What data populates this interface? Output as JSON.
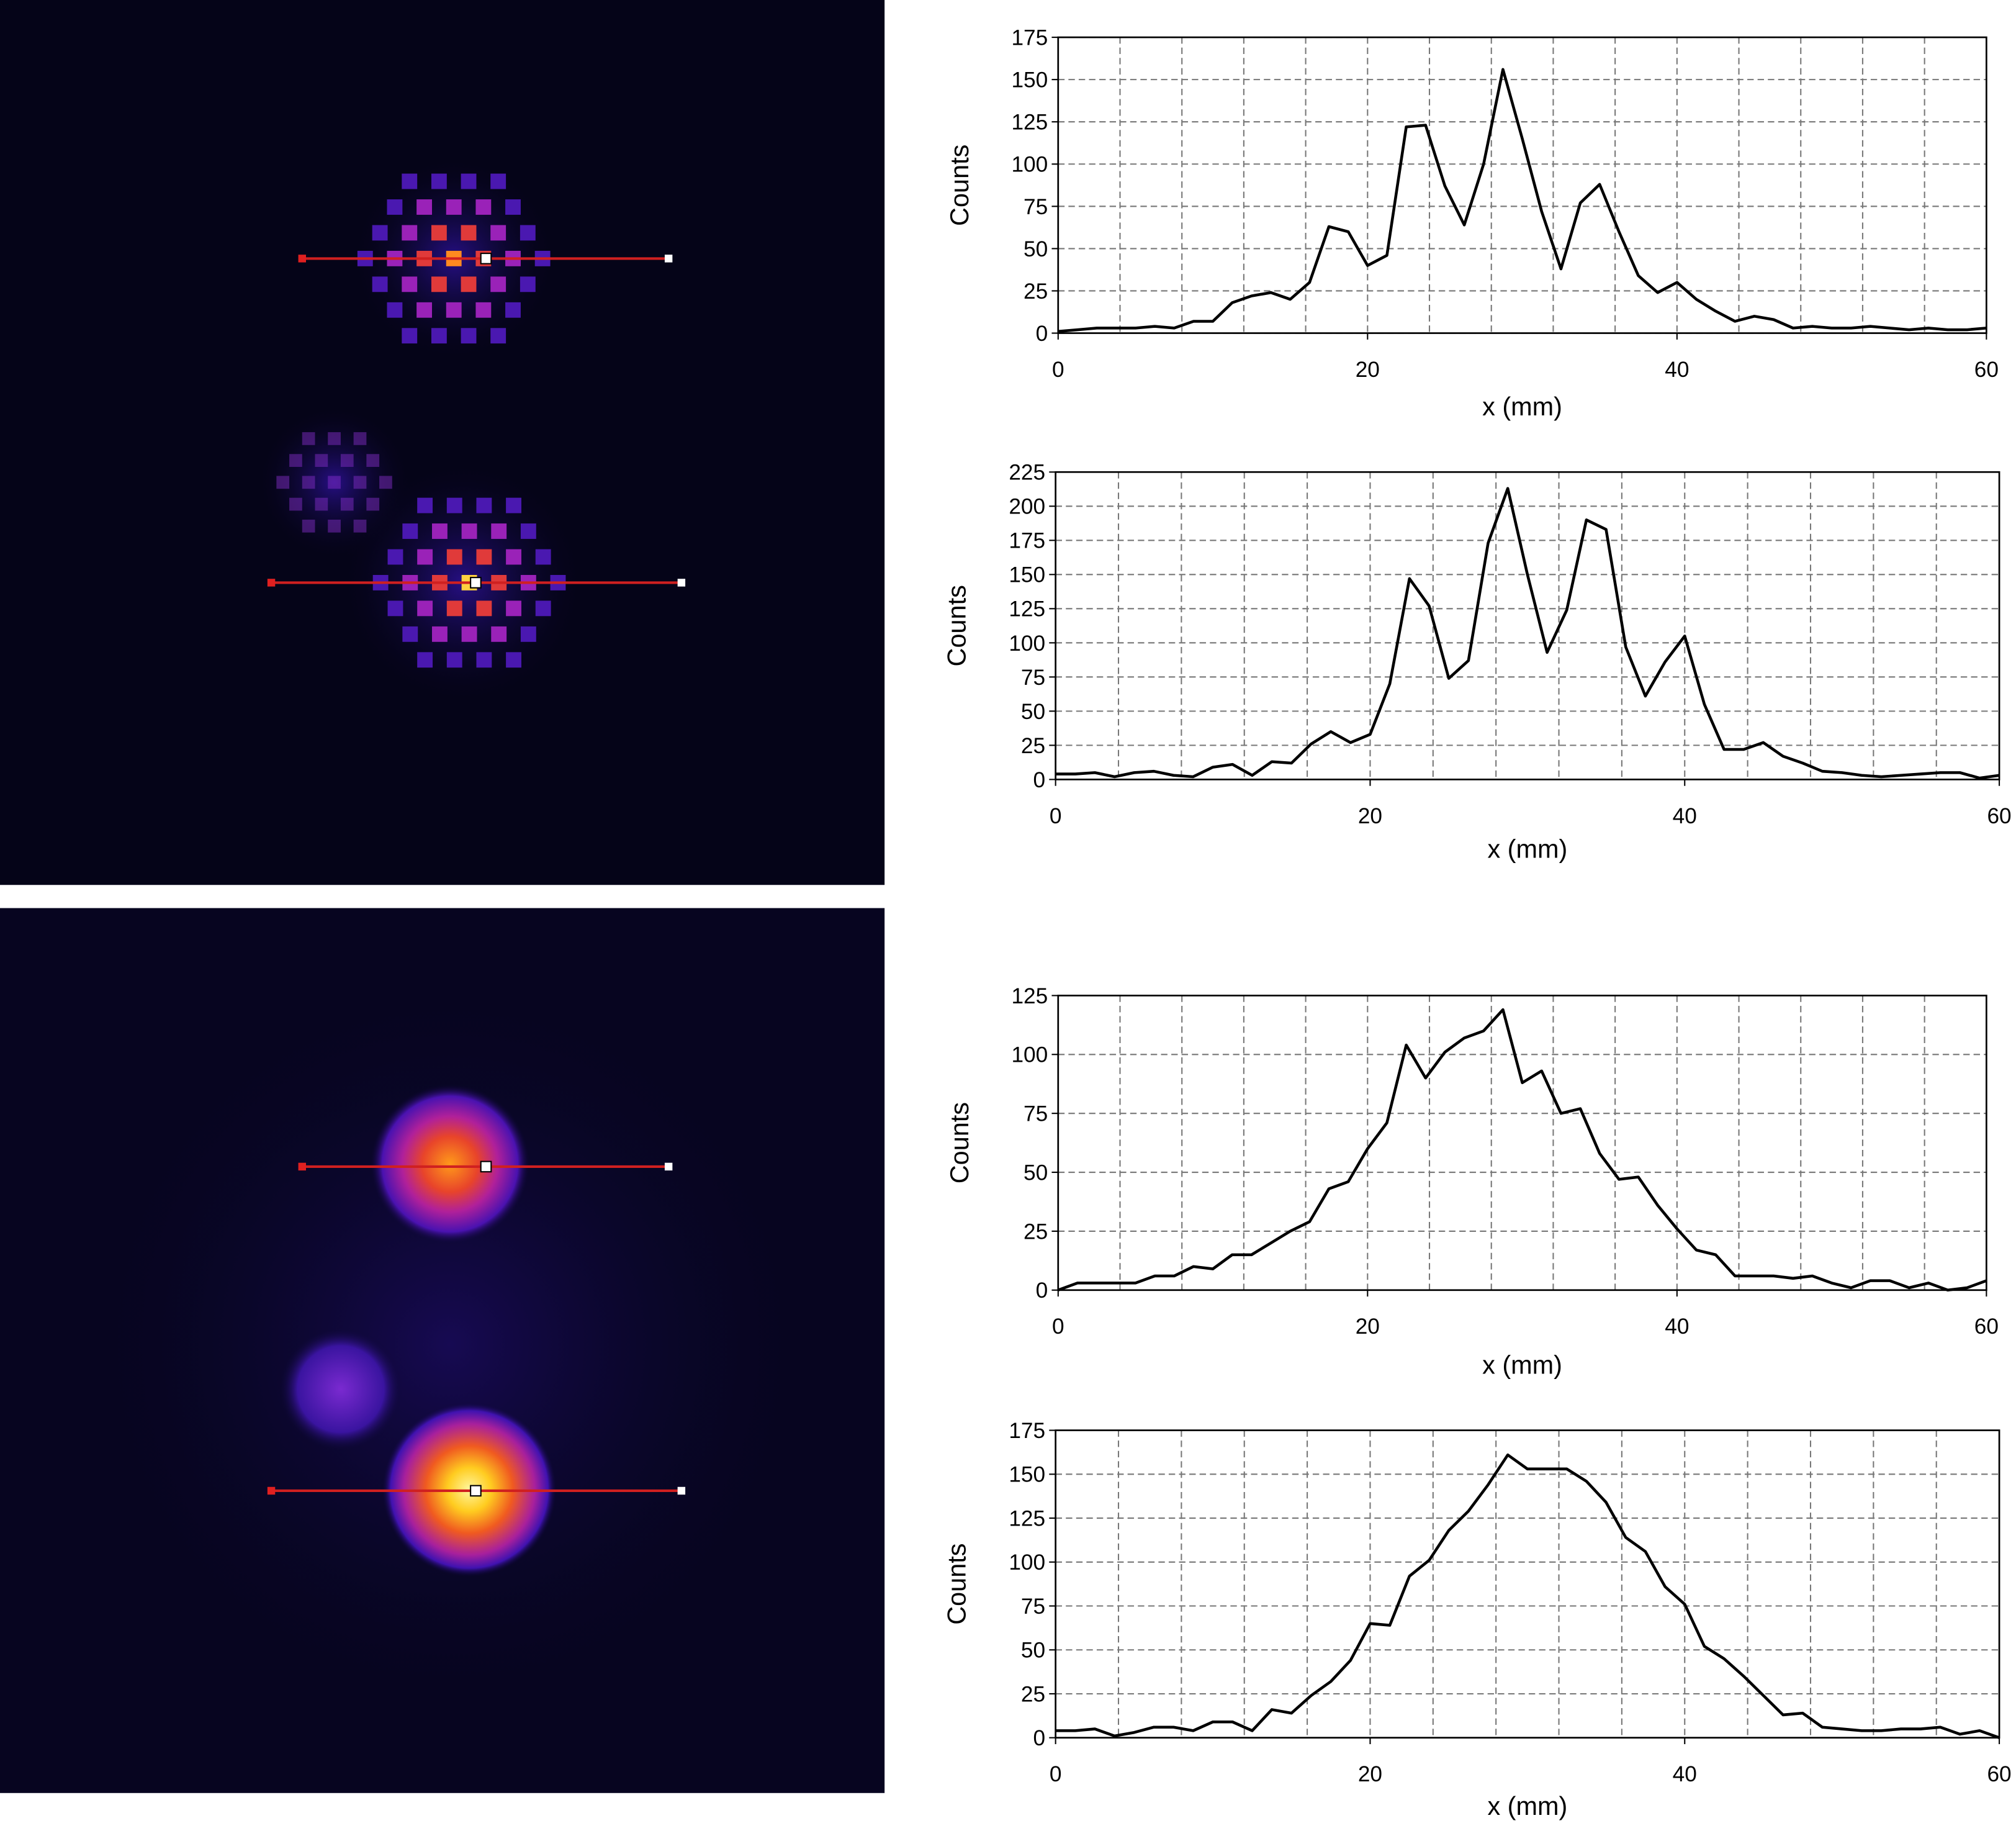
{
  "chart_data": [
    {
      "type": "line",
      "xlabel": "x (mm)",
      "ylabel": "Counts",
      "x": [
        0,
        1.25,
        2.5,
        3.75,
        5,
        6.25,
        7.5,
        8.75,
        10,
        11.25,
        12.5,
        13.75,
        15,
        16.25,
        17.5,
        18.75,
        20,
        21.25,
        22.5,
        23.75,
        25,
        26.25,
        27.5,
        28.75,
        30,
        31.25,
        32.5,
        33.75,
        35,
        36.25,
        37.5,
        38.75,
        40,
        41.25,
        42.5,
        43.75,
        45,
        46.25,
        47.5,
        48.75,
        50,
        51.25,
        52.5,
        53.75,
        55,
        56.25,
        57.5,
        58.75,
        60
      ],
      "values": [
        1,
        2,
        3,
        3,
        3,
        4,
        3,
        7,
        7,
        18,
        22,
        24,
        20,
        30,
        63,
        60,
        40,
        46,
        122,
        123,
        87,
        64,
        100,
        156,
        115,
        72,
        38,
        77,
        88,
        60,
        34,
        24,
        30,
        20,
        13,
        7,
        10,
        8,
        3,
        4,
        3,
        3,
        4,
        3,
        2,
        3,
        2,
        2,
        3
      ],
      "color": "#000000",
      "xlim": [
        0,
        60
      ],
      "xticks": [
        0,
        20,
        40,
        60
      ],
      "x_grid_lines": [
        4,
        8,
        12,
        16,
        20,
        24,
        28,
        32,
        36,
        40,
        44,
        48,
        52,
        56
      ],
      "ylim": [
        0,
        175
      ],
      "yticks": [
        0,
        25,
        50,
        75,
        100,
        125,
        150,
        175
      ],
      "grid": true
    },
    {
      "type": "line",
      "xlabel": "x (mm)",
      "ylabel": "Counts",
      "x": [
        0,
        1.25,
        2.5,
        3.75,
        5,
        6.25,
        7.5,
        8.75,
        10,
        11.25,
        12.5,
        13.75,
        15,
        16.25,
        17.5,
        18.75,
        20,
        21.25,
        22.5,
        23.75,
        25,
        26.25,
        27.5,
        28.75,
        30,
        31.25,
        32.5,
        33.75,
        35,
        36.25,
        37.5,
        38.75,
        40,
        41.25,
        42.5,
        43.75,
        45,
        46.25,
        47.5,
        48.75,
        50,
        51.25,
        52.5,
        53.75,
        55,
        56.25,
        57.5,
        58.75,
        60
      ],
      "values": [
        4,
        4,
        5,
        2,
        5,
        6,
        3,
        2,
        9,
        11,
        3,
        13,
        12,
        26,
        35,
        27,
        33,
        70,
        147,
        127,
        74,
        87,
        173,
        213,
        150,
        93,
        124,
        190,
        183,
        97,
        61,
        86,
        105,
        55,
        22,
        22,
        27,
        17,
        12,
        6,
        5,
        3,
        2,
        3,
        4,
        5,
        5,
        1,
        3
      ],
      "color": "#000000",
      "xlim": [
        0,
        60
      ],
      "xticks": [
        0,
        20,
        40,
        60
      ],
      "x_grid_lines": [
        4,
        8,
        12,
        16,
        20,
        24,
        28,
        32,
        36,
        40,
        44,
        48,
        52,
        56
      ],
      "ylim": [
        0,
        225
      ],
      "yticks": [
        0,
        25,
        50,
        75,
        100,
        125,
        150,
        175,
        200,
        225
      ],
      "grid": true
    },
    {
      "type": "line",
      "xlabel": "x (mm)",
      "ylabel": "Counts",
      "x": [
        0,
        1.25,
        2.5,
        3.75,
        5,
        6.25,
        7.5,
        8.75,
        10,
        11.25,
        12.5,
        13.75,
        15,
        16.25,
        17.5,
        18.75,
        20,
        21.25,
        22.5,
        23.75,
        25,
        26.25,
        27.5,
        28.75,
        30,
        31.25,
        32.5,
        33.75,
        35,
        36.25,
        37.5,
        38.75,
        40,
        41.25,
        42.5,
        43.75,
        45,
        46.25,
        47.5,
        48.75,
        50,
        51.25,
        52.5,
        53.75,
        55,
        56.25,
        57.5,
        58.75,
        60
      ],
      "values": [
        0,
        3,
        3,
        3,
        3,
        6,
        6,
        10,
        9,
        15,
        15,
        20,
        25,
        29,
        43,
        46,
        60,
        71,
        104,
        90,
        101,
        107,
        110,
        119,
        88,
        93,
        75,
        77,
        58,
        47,
        48,
        36,
        26,
        17,
        15,
        6,
        6,
        6,
        5,
        6,
        3,
        1,
        4,
        4,
        1,
        3,
        0,
        1,
        4
      ],
      "color": "#000000",
      "xlim": [
        0,
        60
      ],
      "xticks": [
        0,
        20,
        40,
        60
      ],
      "x_grid_lines": [
        4,
        8,
        12,
        16,
        20,
        24,
        28,
        32,
        36,
        40,
        44,
        48,
        52,
        56
      ],
      "ylim": [
        0,
        125
      ],
      "yticks": [
        0,
        25,
        50,
        75,
        100,
        125
      ],
      "grid": true
    },
    {
      "type": "line",
      "xlabel": "x (mm)",
      "ylabel": "Counts",
      "x": [
        0,
        1.25,
        2.5,
        3.75,
        5,
        6.25,
        7.5,
        8.75,
        10,
        11.25,
        12.5,
        13.75,
        15,
        16.25,
        17.5,
        18.75,
        20,
        21.25,
        22.5,
        23.75,
        25,
        26.25,
        27.5,
        28.75,
        30,
        31.25,
        32.5,
        33.75,
        35,
        36.25,
        37.5,
        38.75,
        40,
        41.25,
        42.5,
        43.75,
        45,
        46.25,
        47.5,
        48.75,
        50,
        51.25,
        52.5,
        53.75,
        55,
        56.25,
        57.5,
        58.75,
        60
      ],
      "values": [
        4,
        4,
        5,
        1,
        3,
        6,
        6,
        4,
        9,
        9,
        4,
        16,
        14,
        24,
        32,
        44,
        65,
        64,
        92,
        101,
        118,
        129,
        144,
        161,
        153,
        153,
        153,
        146,
        134,
        114,
        106,
        86,
        76,
        52,
        45,
        35,
        24,
        13,
        14,
        6,
        5,
        4,
        4,
        5,
        5,
        6,
        2,
        4,
        0
      ],
      "color": "#000000",
      "xlim": [
        0,
        60
      ],
      "xticks": [
        0,
        20,
        40,
        60
      ],
      "x_grid_lines": [
        4,
        8,
        12,
        16,
        20,
        24,
        28,
        32,
        36,
        40,
        44,
        48,
        52,
        56
      ],
      "ylim": [
        0,
        175
      ],
      "yticks": [
        0,
        25,
        50,
        75,
        100,
        125,
        150,
        175
      ],
      "grid": true
    }
  ]
}
